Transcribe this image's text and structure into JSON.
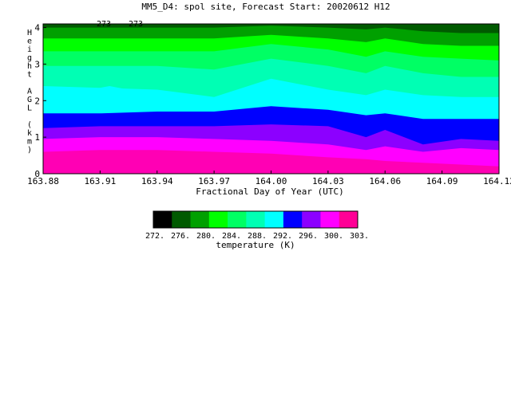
{
  "chart_data": {
    "type": "heatmap",
    "title": "MM5_D4: spol site,  Forecast Start: 20020612 H12",
    "xlabel": "Fractional Day of Year (UTC)",
    "ylabel": "Height AGL (km)",
    "x_ticks": [
      "163.88",
      "163.91",
      "163.94",
      "163.97",
      "164.00",
      "164.03",
      "164.06",
      "164.09",
      "164.12"
    ],
    "y_ticks": [
      "0",
      "1",
      "2",
      "3",
      "4"
    ],
    "xlim": [
      163.88,
      164.12
    ],
    "ylim": [
      0,
      4.1
    ],
    "contour_annotations": [
      "273",
      "273"
    ],
    "colorbar": {
      "label": "temperature (K)",
      "tick_labels": [
        "272.",
        "276.",
        "280.",
        "284.",
        "288.",
        "292.",
        "296.",
        "300.",
        "303."
      ],
      "colors": [
        "#000000",
        "#005a00",
        "#00a000",
        "#00ff00",
        "#00ff64",
        "#00ffb4",
        "#00ffff",
        "#0000ff",
        "#8c00ff",
        "#ff00ff",
        "#ff0096"
      ]
    },
    "x_samples": [
      163.88,
      163.91,
      163.94,
      163.97,
      164.0,
      164.03,
      164.05,
      164.06,
      164.08,
      164.1,
      164.12
    ],
    "band_bottom_heights_km": [
      [
        0,
        0,
        0,
        0,
        0,
        0,
        0,
        0,
        0,
        0,
        0
      ],
      [
        0.6,
        0.65,
        0.65,
        0.6,
        0.55,
        0.45,
        0.4,
        0.35,
        0.3,
        0.25,
        0.2
      ],
      [
        0.95,
        1.0,
        1.0,
        0.95,
        0.9,
        0.8,
        0.65,
        0.75,
        0.6,
        0.7,
        0.65
      ],
      [
        1.25,
        1.3,
        1.3,
        1.3,
        1.35,
        1.3,
        1.0,
        1.2,
        0.8,
        0.95,
        0.9
      ],
      [
        1.65,
        1.65,
        1.7,
        1.7,
        1.85,
        1.75,
        1.6,
        1.65,
        1.5,
        1.5,
        1.5
      ],
      [
        2.4,
        2.35,
        2.3,
        2.1,
        2.6,
        2.3,
        2.15,
        2.3,
        2.15,
        2.1,
        2.1
      ],
      [
        2.95,
        2.95,
        2.95,
        2.85,
        3.15,
        2.95,
        2.75,
        2.95,
        2.75,
        2.65,
        2.65
      ],
      [
        3.35,
        3.35,
        3.35,
        3.35,
        3.55,
        3.4,
        3.2,
        3.35,
        3.2,
        3.15,
        3.1
      ],
      [
        3.7,
        3.7,
        3.7,
        3.7,
        3.8,
        3.7,
        3.6,
        3.7,
        3.55,
        3.5,
        3.5
      ],
      [
        4.0,
        4.0,
        4.0,
        4.0,
        4.05,
        4.0,
        3.95,
        4.0,
        3.9,
        3.85,
        3.85
      ]
    ],
    "band_colors": [
      "#ff00b4",
      "#ff00ff",
      "#8c00ff",
      "#0000ff",
      "#00ffff",
      "#00ffb4",
      "#00ff64",
      "#00ff00",
      "#00a000",
      "#005a00"
    ],
    "isolated_region": {
      "color": "#00ffff",
      "x": [
        163.9,
        163.915,
        163.93
      ],
      "y_outline_km": [
        2.25,
        2.05,
        2.25,
        2.4
      ]
    }
  }
}
